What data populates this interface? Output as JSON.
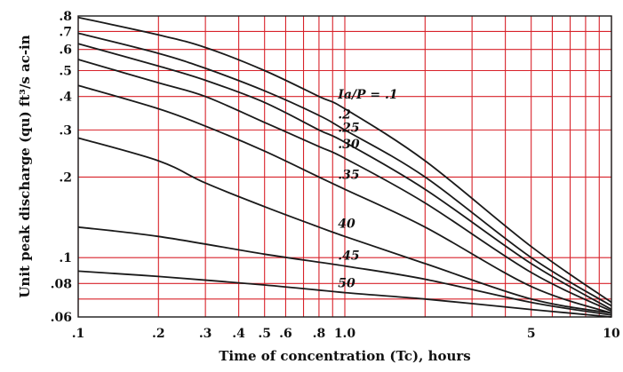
{
  "chart_data": {
    "type": "line",
    "title": "",
    "xlabel": "Time of concentration (Tc), hours",
    "ylabel": "Unit peak discharge (qu) ft³/s ac-in",
    "x_scale": "log",
    "y_scale": "log",
    "xlim": [
      0.1,
      10
    ],
    "ylim": [
      0.06,
      0.8
    ],
    "grid": true,
    "grid_color": "#d8222a",
    "curve_color": "#1a1a1a",
    "x_ticks": [
      {
        "value": 0.1,
        "label": ".1"
      },
      {
        "value": 0.2,
        "label": ".2"
      },
      {
        "value": 0.3,
        "label": ".3"
      },
      {
        "value": 0.4,
        "label": ".4"
      },
      {
        "value": 0.5,
        "label": ".5"
      },
      {
        "value": 0.6,
        "label": ".6"
      },
      {
        "value": 0.8,
        "label": ".8"
      },
      {
        "value": 1.0,
        "label": "1.0"
      },
      {
        "value": 5,
        "label": "5"
      },
      {
        "value": 10,
        "label": "10"
      }
    ],
    "x_grid": [
      0.1,
      0.2,
      0.3,
      0.4,
      0.5,
      0.6,
      0.7,
      0.8,
      0.9,
      1,
      2,
      3,
      4,
      5,
      6,
      7,
      8,
      9,
      10
    ],
    "y_ticks": [
      {
        "value": 0.06,
        "label": ".06"
      },
      {
        "value": 0.08,
        "label": ".08"
      },
      {
        "value": 0.1,
        "label": ".1"
      },
      {
        "value": 0.2,
        "label": ".2"
      },
      {
        "value": 0.3,
        "label": ".3"
      },
      {
        "value": 0.4,
        "label": ".4"
      },
      {
        "value": 0.5,
        "label": ".5"
      },
      {
        "value": 0.6,
        "label": ".6"
      },
      {
        "value": 0.7,
        "label": ".7"
      },
      {
        "value": 0.8,
        "label": ".8"
      }
    ],
    "y_grid": [
      0.06,
      0.07,
      0.08,
      0.1,
      0.2,
      0.3,
      0.4,
      0.5,
      0.6,
      0.7,
      0.8
    ],
    "series": [
      {
        "name": "Ia/P = .1",
        "label": "Ia/P = .1",
        "label_at": 0.9,
        "points": [
          [
            0.1,
            0.79
          ],
          [
            0.2,
            0.68
          ],
          [
            0.3,
            0.61
          ],
          [
            0.5,
            0.5
          ],
          [
            0.8,
            0.4
          ],
          [
            1.0,
            0.36
          ],
          [
            2,
            0.23
          ],
          [
            5,
            0.11
          ],
          [
            10,
            0.068
          ]
        ]
      },
      {
        "name": ".2",
        "label": ".2",
        "label_at": 0.9,
        "points": [
          [
            0.1,
            0.69
          ],
          [
            0.2,
            0.58
          ],
          [
            0.3,
            0.51
          ],
          [
            0.5,
            0.42
          ],
          [
            0.8,
            0.34
          ],
          [
            1.0,
            0.3
          ],
          [
            2,
            0.2
          ],
          [
            5,
            0.1
          ],
          [
            10,
            0.066
          ]
        ]
      },
      {
        "name": ".25",
        "label": ".25",
        "label_at": 0.9,
        "points": [
          [
            0.1,
            0.63
          ],
          [
            0.2,
            0.52
          ],
          [
            0.3,
            0.46
          ],
          [
            0.5,
            0.38
          ],
          [
            0.8,
            0.3
          ],
          [
            1.0,
            0.27
          ],
          [
            2,
            0.18
          ],
          [
            5,
            0.095
          ],
          [
            10,
            0.064
          ]
        ]
      },
      {
        "name": ".30",
        "label": ".30",
        "label_at": 0.9,
        "points": [
          [
            0.1,
            0.55
          ],
          [
            0.2,
            0.45
          ],
          [
            0.3,
            0.4
          ],
          [
            0.5,
            0.32
          ],
          [
            0.8,
            0.26
          ],
          [
            1.0,
            0.235
          ],
          [
            2,
            0.16
          ],
          [
            5,
            0.088
          ],
          [
            10,
            0.063
          ]
        ]
      },
      {
        "name": ".35",
        "label": ".35",
        "label_at": 0.9,
        "points": [
          [
            0.1,
            0.44
          ],
          [
            0.2,
            0.36
          ],
          [
            0.3,
            0.31
          ],
          [
            0.5,
            0.25
          ],
          [
            0.8,
            0.2
          ],
          [
            1.0,
            0.18
          ],
          [
            2,
            0.13
          ],
          [
            5,
            0.078
          ],
          [
            10,
            0.062
          ]
        ]
      },
      {
        "name": ".40",
        "label": "40",
        "label_at": 0.9,
        "points": [
          [
            0.1,
            0.28
          ],
          [
            0.2,
            0.23
          ],
          [
            0.3,
            0.19
          ],
          [
            0.5,
            0.155
          ],
          [
            0.8,
            0.13
          ],
          [
            1.0,
            0.12
          ],
          [
            2,
            0.095
          ],
          [
            5,
            0.07
          ],
          [
            10,
            0.062
          ]
        ]
      },
      {
        "name": ".45",
        "label": ".45",
        "label_at": 0.9,
        "points": [
          [
            0.1,
            0.13
          ],
          [
            0.2,
            0.12
          ],
          [
            0.5,
            0.103
          ],
          [
            1.0,
            0.093
          ],
          [
            2,
            0.083
          ],
          [
            5,
            0.068
          ],
          [
            10,
            0.061
          ]
        ]
      },
      {
        "name": ".50",
        "label": "50",
        "label_at": 0.9,
        "points": [
          [
            0.1,
            0.089
          ],
          [
            0.2,
            0.085
          ],
          [
            0.5,
            0.079
          ],
          [
            1.0,
            0.074
          ],
          [
            2,
            0.07
          ],
          [
            5,
            0.064
          ],
          [
            10,
            0.06
          ]
        ]
      }
    ]
  }
}
